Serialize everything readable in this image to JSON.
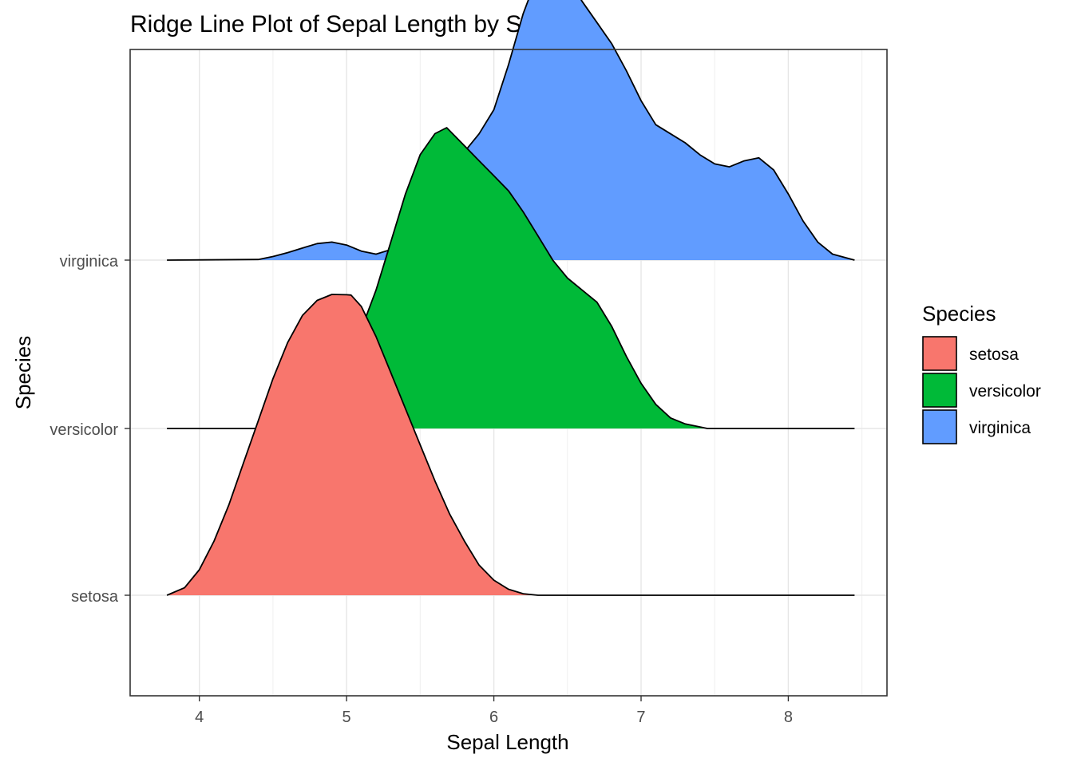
{
  "chart_data": {
    "type": "ridgeline",
    "title": "Ridge Line Plot of Sepal Length by Species",
    "xlabel": "Sepal Length",
    "ylabel": "Species",
    "xlim": [
      3.53,
      8.67
    ],
    "x_ticks": [
      4,
      5,
      6,
      7,
      8
    ],
    "x_tick_labels": [
      "4",
      "5",
      "6",
      "7",
      "8"
    ],
    "categories": [
      "setosa",
      "versicolor",
      "virginica"
    ],
    "grid": true,
    "legend": {
      "title": "Species",
      "position": "right",
      "items": [
        {
          "label": "setosa",
          "color": "#F8766D"
        },
        {
          "label": "versicolor",
          "color": "#00BA38"
        },
        {
          "label": "virginica",
          "color": "#619CFF"
        }
      ]
    },
    "series": [
      {
        "category": "setosa",
        "color": "#F8766D",
        "x": [
          3.78,
          3.9,
          4.0,
          4.1,
          4.2,
          4.3,
          4.4,
          4.5,
          4.6,
          4.7,
          4.8,
          4.9,
          5.0,
          5.03,
          5.1,
          5.2,
          5.3,
          5.4,
          5.5,
          5.6,
          5.7,
          5.8,
          5.9,
          6.0,
          6.1,
          6.2,
          6.3,
          8.45
        ],
        "y": [
          0.0,
          0.025,
          0.085,
          0.18,
          0.3,
          0.44,
          0.58,
          0.72,
          0.84,
          0.93,
          0.98,
          1.0,
          0.999,
          0.998,
          0.96,
          0.86,
          0.74,
          0.62,
          0.5,
          0.38,
          0.27,
          0.18,
          0.1,
          0.05,
          0.02,
          0.005,
          0.0,
          0.0
        ]
      },
      {
        "category": "versicolor",
        "color": "#00BA38",
        "x": [
          3.78,
          4.4,
          4.5,
          4.6,
          4.7,
          4.8,
          4.9,
          5.0,
          5.1,
          5.2,
          5.3,
          5.4,
          5.5,
          5.6,
          5.68,
          5.8,
          5.9,
          6.0,
          6.1,
          6.2,
          6.3,
          6.4,
          6.5,
          6.6,
          6.7,
          6.8,
          6.9,
          7.0,
          7.1,
          7.2,
          7.3,
          7.45,
          8.45
        ],
        "y": [
          0.0,
          0.0,
          0.005,
          0.015,
          0.035,
          0.07,
          0.13,
          0.22,
          0.33,
          0.46,
          0.62,
          0.78,
          0.91,
          0.98,
          1.0,
          0.94,
          0.89,
          0.84,
          0.79,
          0.72,
          0.64,
          0.56,
          0.5,
          0.46,
          0.42,
          0.34,
          0.24,
          0.15,
          0.08,
          0.035,
          0.015,
          0.0,
          0.0
        ]
      },
      {
        "category": "virginica",
        "color": "#619CFF",
        "x": [
          3.78,
          4.4,
          4.5,
          4.6,
          4.7,
          4.8,
          4.9,
          5.0,
          5.1,
          5.2,
          5.3,
          5.4,
          5.5,
          5.6,
          5.7,
          5.8,
          5.9,
          6.0,
          6.1,
          6.2,
          6.3,
          6.38,
          6.5,
          6.6,
          6.7,
          6.8,
          6.9,
          7.0,
          7.1,
          7.2,
          7.3,
          7.4,
          7.5,
          7.6,
          7.7,
          7.8,
          7.9,
          8.0,
          8.1,
          8.2,
          8.3,
          8.45
        ],
        "y": [
          0.0,
          0.002,
          0.012,
          0.025,
          0.04,
          0.055,
          0.06,
          0.05,
          0.03,
          0.02,
          0.035,
          0.08,
          0.15,
          0.24,
          0.3,
          0.36,
          0.42,
          0.5,
          0.65,
          0.82,
          0.95,
          1.0,
          0.94,
          0.86,
          0.79,
          0.72,
          0.63,
          0.53,
          0.45,
          0.42,
          0.39,
          0.35,
          0.32,
          0.31,
          0.33,
          0.34,
          0.3,
          0.22,
          0.13,
          0.06,
          0.02,
          0.0
        ]
      }
    ]
  }
}
